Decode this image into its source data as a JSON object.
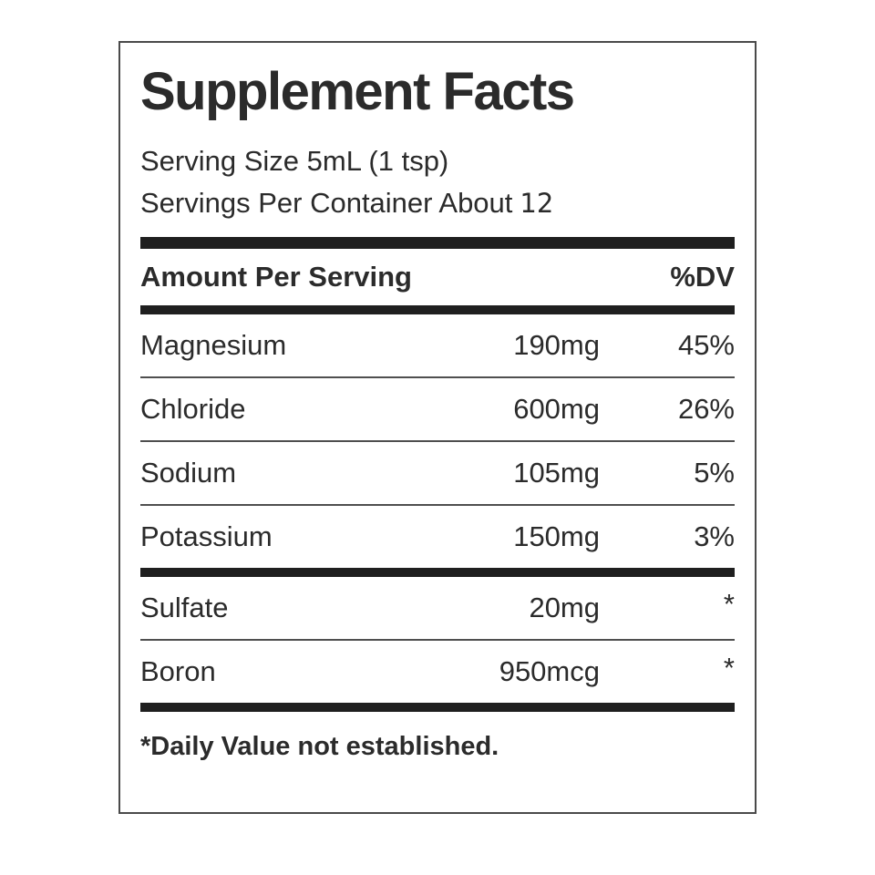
{
  "colors": {
    "text": "#2b2b2b",
    "bar": "#1f1f1f",
    "border": "#4a4a4a"
  },
  "label": {
    "title": "Supplement Facts",
    "serving_size": "Serving Size 5mL (1 tsp)",
    "servings_per_container_label": "Servings Per Container About",
    "servings_per_container_value": "12",
    "header": {
      "amount": "Amount Per Serving",
      "dv": "%DV"
    },
    "rows": [
      {
        "name": "Magnesium",
        "amount": "190mg",
        "dv": "45%"
      },
      {
        "name": "Chloride",
        "amount": "600mg",
        "dv": "26%"
      },
      {
        "name": "Sodium",
        "amount": "105mg",
        "dv": "5%"
      },
      {
        "name": "Potassium",
        "amount": "150mg",
        "dv": "3%"
      }
    ],
    "rows_secondary": [
      {
        "name": "Sulfate",
        "amount": "20mg",
        "dv": "*"
      },
      {
        "name": "Boron",
        "amount": "950mcg",
        "dv": "*"
      }
    ],
    "footnote": "*Daily Value not established."
  }
}
